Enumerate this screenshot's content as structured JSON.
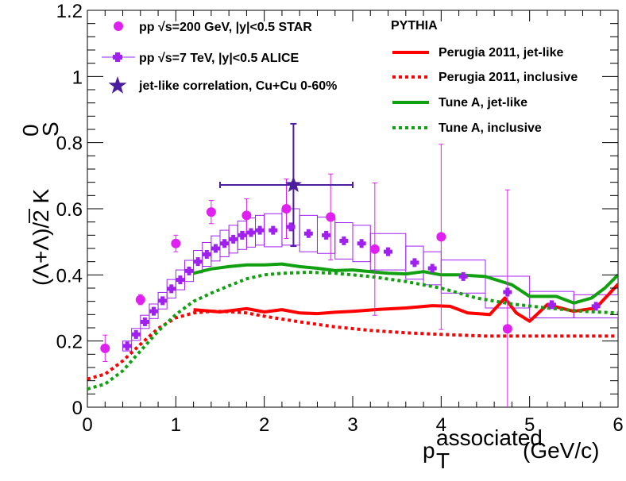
{
  "chart_data": {
    "type": "scatter",
    "xlabel": {
      "main": "p",
      "sub": "T",
      "sup": "associated",
      "unit": " (GeV/c)"
    },
    "ylabel": {
      "text": "(Λ+Λ)/2 K",
      "sup": "0",
      "sub": "S",
      "overline_char": "Λ"
    },
    "xlim": [
      0,
      6
    ],
    "ylim": [
      0,
      1.2
    ],
    "xticks": [
      0,
      1,
      2,
      3,
      4,
      5,
      6
    ],
    "xtick_labels": [
      "0",
      "1",
      "2",
      "3",
      "4",
      "5",
      "6"
    ],
    "yticks": [
      0,
      0.2,
      0.4,
      0.6,
      0.8,
      1.0,
      1.2
    ],
    "ytick_labels": [
      "0",
      "0.2",
      "0.4",
      "0.6",
      "0.8",
      "1",
      "1.2"
    ],
    "legend_left": [
      {
        "id": "star",
        "text": "pp  √s=200 GeV,  |y|<0.5 STAR",
        "marker": "circle",
        "color": "#e020f0"
      },
      {
        "id": "alice",
        "text": "pp  √s=7 TeV,  |y|<0.5 ALICE",
        "marker": "cross",
        "color": "#a020f0"
      },
      {
        "id": "jet",
        "text": "jet-like correlation, Cu+Cu 0-60%",
        "marker": "star",
        "color": "#4b1ea0"
      }
    ],
    "legend_right_title": "PYTHIA",
    "legend_right": [
      {
        "text": "Perugia 2011, jet-like",
        "color": "#ff0000",
        "dashed": false
      },
      {
        "text": "Perugia 2011, inclusive",
        "color": "#ff0000",
        "dashed": true
      },
      {
        "text": "Tune A, jet-like",
        "color": "#10a010",
        "dashed": false
      },
      {
        "text": "Tune A, inclusive",
        "color": "#10a010",
        "dashed": true
      }
    ],
    "series": [
      {
        "name": "STAR pp 200 GeV",
        "color": "#e020f0",
        "points": [
          {
            "x": 0.2,
            "y": 0.178,
            "eyl": 0.04,
            "eyh": 0.04
          },
          {
            "x": 0.6,
            "y": 0.325,
            "eyl": 0.015,
            "eyh": 0.015
          },
          {
            "x": 1.0,
            "y": 0.495,
            "eyl": 0.025,
            "eyh": 0.025
          },
          {
            "x": 1.4,
            "y": 0.59,
            "eyl": 0.035,
            "eyh": 0.035
          },
          {
            "x": 1.8,
            "y": 0.58,
            "eyl": 0.05,
            "eyh": 0.05
          },
          {
            "x": 2.25,
            "y": 0.6,
            "eyl": 0.09,
            "eyh": 0.09
          },
          {
            "x": 2.75,
            "y": 0.575,
            "eyl": 0.13,
            "eyh": 0.13
          },
          {
            "x": 3.25,
            "y": 0.478,
            "eyl": 0.2,
            "eyh": 0.2
          },
          {
            "x": 4.0,
            "y": 0.515,
            "eyl": 0.28,
            "eyh": 0.28
          },
          {
            "x": 4.75,
            "y": 0.237,
            "eyl": 0.5,
            "eyh": 0.42
          }
        ]
      },
      {
        "name": "ALICE pp 7 TeV",
        "color": "#a020f0",
        "points": [
          {
            "x": 0.45,
            "y": 0.185,
            "xl": 0.4,
            "xh": 0.5,
            "sys": 0.015
          },
          {
            "x": 0.55,
            "y": 0.22,
            "xl": 0.5,
            "xh": 0.6,
            "sys": 0.018
          },
          {
            "x": 0.65,
            "y": 0.258,
            "xl": 0.6,
            "xh": 0.7,
            "sys": 0.02
          },
          {
            "x": 0.75,
            "y": 0.29,
            "xl": 0.7,
            "xh": 0.8,
            "sys": 0.022
          },
          {
            "x": 0.85,
            "y": 0.322,
            "xl": 0.8,
            "xh": 0.9,
            "sys": 0.025
          },
          {
            "x": 0.95,
            "y": 0.358,
            "xl": 0.9,
            "xh": 1.0,
            "sys": 0.028
          },
          {
            "x": 1.05,
            "y": 0.385,
            "xl": 1.0,
            "xh": 1.1,
            "sys": 0.03
          },
          {
            "x": 1.15,
            "y": 0.412,
            "xl": 1.1,
            "xh": 1.2,
            "sys": 0.032
          },
          {
            "x": 1.25,
            "y": 0.44,
            "xl": 1.2,
            "xh": 1.3,
            "sys": 0.034
          },
          {
            "x": 1.35,
            "y": 0.462,
            "xl": 1.3,
            "xh": 1.4,
            "sys": 0.036
          },
          {
            "x": 1.45,
            "y": 0.48,
            "xl": 1.4,
            "xh": 1.5,
            "sys": 0.038
          },
          {
            "x": 1.55,
            "y": 0.495,
            "xl": 1.5,
            "xh": 1.6,
            "sys": 0.04
          },
          {
            "x": 1.65,
            "y": 0.508,
            "xl": 1.6,
            "xh": 1.7,
            "sys": 0.042
          },
          {
            "x": 1.75,
            "y": 0.52,
            "xl": 1.7,
            "xh": 1.8,
            "sys": 0.043
          },
          {
            "x": 1.85,
            "y": 0.528,
            "xl": 1.8,
            "xh": 1.9,
            "sys": 0.044
          },
          {
            "x": 1.95,
            "y": 0.535,
            "xl": 1.9,
            "xh": 2.0,
            "sys": 0.045
          },
          {
            "x": 2.1,
            "y": 0.535,
            "xl": 2.0,
            "xh": 2.2,
            "sys": 0.05
          },
          {
            "x": 2.3,
            "y": 0.545,
            "xl": 2.2,
            "xh": 2.4,
            "sys": 0.055
          },
          {
            "x": 2.5,
            "y": 0.525,
            "xl": 2.4,
            "xh": 2.6,
            "sys": 0.055
          },
          {
            "x": 2.7,
            "y": 0.52,
            "xl": 2.6,
            "xh": 2.8,
            "sys": 0.055
          },
          {
            "x": 2.9,
            "y": 0.503,
            "xl": 2.8,
            "xh": 3.0,
            "sys": 0.055
          },
          {
            "x": 3.1,
            "y": 0.495,
            "xl": 3.0,
            "xh": 3.2,
            "sys": 0.055
          },
          {
            "x": 3.4,
            "y": 0.47,
            "xl": 3.2,
            "xh": 3.6,
            "sys": 0.055
          },
          {
            "x": 3.7,
            "y": 0.437,
            "xl": 3.6,
            "xh": 3.8,
            "sys": 0.05
          },
          {
            "x": 3.9,
            "y": 0.42,
            "xl": 3.8,
            "xh": 4.0,
            "sys": 0.05
          },
          {
            "x": 4.25,
            "y": 0.395,
            "xl": 4.0,
            "xh": 4.5,
            "sys": 0.05
          },
          {
            "x": 4.75,
            "y": 0.348,
            "xl": 4.5,
            "xh": 5.0,
            "sys": 0.048
          },
          {
            "x": 5.25,
            "y": 0.31,
            "xl": 5.0,
            "xh": 5.5,
            "sys": 0.04
          },
          {
            "x": 5.75,
            "y": 0.305,
            "xl": 5.5,
            "xh": 6.0,
            "sys": 0.035
          }
        ]
      },
      {
        "name": "jet-like Cu+Cu",
        "color": "#4b1ea0",
        "points": [
          {
            "x": 2.33,
            "y": 0.672,
            "xl": 1.5,
            "xh": 3.0,
            "eyl": 0.185,
            "eyh": 0.185
          }
        ]
      }
    ],
    "curves": [
      {
        "name": "Perugia 2011, jet-like",
        "color": "#ff0000",
        "dashed": false,
        "x": [
          1.2,
          1.5,
          1.8,
          2.0,
          2.2,
          2.4,
          2.6,
          2.8,
          3.0,
          3.3,
          3.6,
          3.9,
          4.1,
          4.3,
          4.55,
          4.72,
          4.85,
          5.0,
          5.2,
          5.5,
          5.75,
          6.0
        ],
        "y": [
          0.295,
          0.288,
          0.298,
          0.288,
          0.295,
          0.285,
          0.283,
          0.287,
          0.29,
          0.296,
          0.3,
          0.307,
          0.305,
          0.285,
          0.28,
          0.33,
          0.285,
          0.26,
          0.31,
          0.29,
          0.3,
          0.372
        ]
      },
      {
        "name": "Perugia 2011, inclusive",
        "color": "#ff0000",
        "dashed": true,
        "x": [
          0.0,
          0.2,
          0.4,
          0.6,
          0.8,
          1.0,
          1.2,
          1.4,
          1.6,
          1.8,
          2.0,
          2.4,
          2.8,
          3.2,
          3.6,
          4.0,
          4.5,
          5.0,
          5.5,
          6.0
        ],
        "y": [
          0.085,
          0.1,
          0.14,
          0.19,
          0.238,
          0.27,
          0.285,
          0.29,
          0.289,
          0.285,
          0.275,
          0.258,
          0.243,
          0.232,
          0.225,
          0.22,
          0.215,
          0.215,
          0.215,
          0.215
        ]
      },
      {
        "name": "Tune A, jet-like",
        "color": "#10a010",
        "dashed": false,
        "x": [
          1.2,
          1.4,
          1.6,
          1.8,
          2.0,
          2.2,
          2.4,
          2.6,
          2.8,
          3.0,
          3.2,
          3.4,
          3.6,
          3.8,
          4.0,
          4.2,
          4.5,
          4.8,
          5.0,
          5.3,
          5.5,
          5.7,
          5.85,
          6.0
        ],
        "y": [
          0.405,
          0.418,
          0.425,
          0.43,
          0.43,
          0.433,
          0.425,
          0.42,
          0.413,
          0.415,
          0.41,
          0.405,
          0.403,
          0.41,
          0.4,
          0.4,
          0.395,
          0.37,
          0.335,
          0.335,
          0.315,
          0.33,
          0.36,
          0.4
        ]
      },
      {
        "name": "Tune A, inclusive",
        "color": "#10a010",
        "dashed": true,
        "x": [
          0.0,
          0.2,
          0.4,
          0.6,
          0.8,
          1.0,
          1.2,
          1.4,
          1.6,
          1.8,
          2.0,
          2.2,
          2.5,
          2.8,
          3.2,
          3.6,
          4.0,
          4.4,
          4.8,
          5.2,
          5.6,
          6.0
        ],
        "y": [
          0.055,
          0.07,
          0.11,
          0.17,
          0.23,
          0.28,
          0.32,
          0.345,
          0.367,
          0.388,
          0.4,
          0.405,
          0.408,
          0.405,
          0.395,
          0.38,
          0.36,
          0.33,
          0.312,
          0.3,
          0.29,
          0.285
        ]
      }
    ]
  }
}
